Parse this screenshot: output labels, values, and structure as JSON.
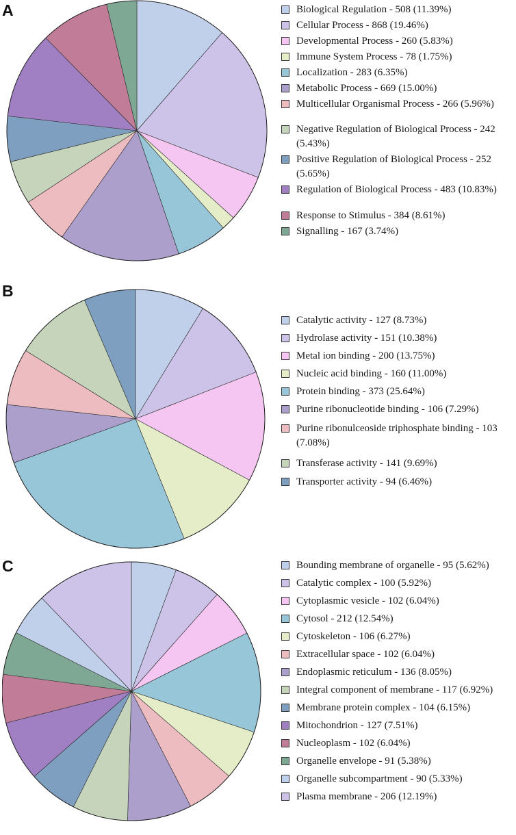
{
  "panels": {
    "a": {
      "letter": "A"
    },
    "b": {
      "letter": "B"
    },
    "c": {
      "letter": "C"
    }
  },
  "chart_data": [
    {
      "type": "pie",
      "panel": "A",
      "title": "",
      "start": "12 o'clock, clockwise",
      "categories": [
        "Biological Regulation",
        "Cellular Process",
        "Developmental Process",
        "Immune System Process",
        "Localization",
        "Metabolic Process",
        "Multicellular Organismal Process",
        "Negative Regulation of Biological Process",
        "Positive Regulation of Biological Process",
        "Regulation of Biological Process",
        "Response to Stimulus",
        "Signalling"
      ],
      "values": [
        508,
        868,
        260,
        78,
        283,
        669,
        266,
        242,
        252,
        483,
        384,
        167
      ],
      "percents": [
        11.39,
        19.46,
        5.83,
        1.75,
        6.35,
        15.0,
        5.96,
        5.43,
        5.65,
        10.83,
        8.61,
        3.74
      ],
      "colors": [
        "#c0d0eb",
        "#cdc2e7",
        "#f4c6f1",
        "#e4edc7",
        "#97c6d8",
        "#ac9fcc",
        "#edbcc1",
        "#c6d4bc",
        "#7f9fc1",
        "#a07fc2",
        "#c17d98",
        "#7ea893"
      ],
      "legend": [
        "Biological Regulation - 508 (11.39%)",
        "Cellular Process - 868 (19.46%)",
        "Developmental Process - 260 (5.83%)",
        "Immune System Process - 78 (1.75%)",
        "Localization - 283 (6.35%)",
        "Metabolic Process - 669 (15.00%)",
        "Multicellular Organismal Process - 266 (5.96%)",
        "Negative Regulation of Biological Process - 242 (5.43%)",
        "Positive Regulation of Biological Process - 252 (5.65%)",
        "Regulation of Biological Process - 483 (10.83%)",
        "Response to Stimulus - 384 (8.61%)",
        "Signalling - 167 (3.74%)"
      ]
    },
    {
      "type": "pie",
      "panel": "B",
      "title": "",
      "start": "12 o'clock, clockwise",
      "categories": [
        "Catalytic activity",
        "Hydrolase activity",
        "Metal ion binding",
        "Nucleic acid binding",
        "Protein binding",
        "Purine ribonucleotide binding",
        "Purine ribonulceoside triphosphate binding",
        "Transferase activity",
        "Transporter activity"
      ],
      "values": [
        127,
        151,
        200,
        160,
        373,
        106,
        103,
        141,
        94
      ],
      "percents": [
        8.73,
        10.38,
        13.75,
        11.0,
        25.64,
        7.29,
        7.08,
        9.69,
        6.46
      ],
      "colors": [
        "#c0d0eb",
        "#cdc2e7",
        "#f4c6f1",
        "#e4edc7",
        "#97c6d8",
        "#ac9fcc",
        "#edbcc1",
        "#c6d4bc",
        "#7f9fc1"
      ],
      "legend": [
        "Catalytic activity - 127 (8.73%)",
        "Hydrolase activity - 151 (10.38%)",
        "Metal ion binding - 200 (13.75%)",
        "Nucleic acid binding - 160 (11.00%)",
        "Protein binding - 373 (25.64%)",
        "Purine ribonucleotide binding - 106 (7.29%)",
        "Purine ribonulceoside triphosphate binding - 103 (7.08%)",
        "Transferase activity - 141 (9.69%)",
        "Transporter activity - 94 (6.46%)"
      ]
    },
    {
      "type": "pie",
      "panel": "C",
      "title": "",
      "start": "12 o'clock, clockwise",
      "categories": [
        "Bounding membrane of organelle",
        "Catalytic complex",
        "Cytoplasmic vesicle",
        "Cytosol",
        "Cytoskeleton",
        "Extracellular space",
        "Endoplasmic reticulum",
        "Integral component of membrane",
        "Membrane protein complex",
        "Mitochondrion",
        "Nucleoplasm",
        "Organelle envelope",
        "Organelle subcompartment",
        "Plasma membrane"
      ],
      "values": [
        95,
        100,
        102,
        212,
        106,
        102,
        136,
        117,
        104,
        127,
        102,
        91,
        90,
        206
      ],
      "percents": [
        5.62,
        5.92,
        6.04,
        12.54,
        6.27,
        6.04,
        8.05,
        6.92,
        6.15,
        7.51,
        6.04,
        5.38,
        5.33,
        12.19
      ],
      "colors": [
        "#c0d0eb",
        "#cdc2e7",
        "#f4c6f1",
        "#97c6d8",
        "#e4edc7",
        "#edbcc1",
        "#ac9fcc",
        "#c6d4bc",
        "#7f9fc1",
        "#a07fc2",
        "#c17d98",
        "#7ea893",
        "#c0d0eb",
        "#cdc2e7"
      ],
      "legend": [
        "Bounding membrane of organelle - 95 (5.62%)",
        "Catalytic complex - 100 (5.92%)",
        "Cytoplasmic vesicle - 102 (6.04%)",
        "Cytosol - 212 (12.54%)",
        "Cytoskeleton - 106 (6.27%)",
        "Extracellular space - 102 (6.04%)",
        "Endoplasmic reticulum - 136 (8.05%)",
        "Integral component of membrane - 117 (6.92%)",
        "Membrane protein complex - 104 (6.15%)",
        "Mitochondrion - 127 (7.51%)",
        "Nucleoplasm - 102 (6.04%)",
        "Organelle envelope - 91 (5.38%)",
        "Organelle subcompartment - 90 (5.33%)",
        "Plasma membrane - 206 (12.19%)"
      ]
    }
  ]
}
